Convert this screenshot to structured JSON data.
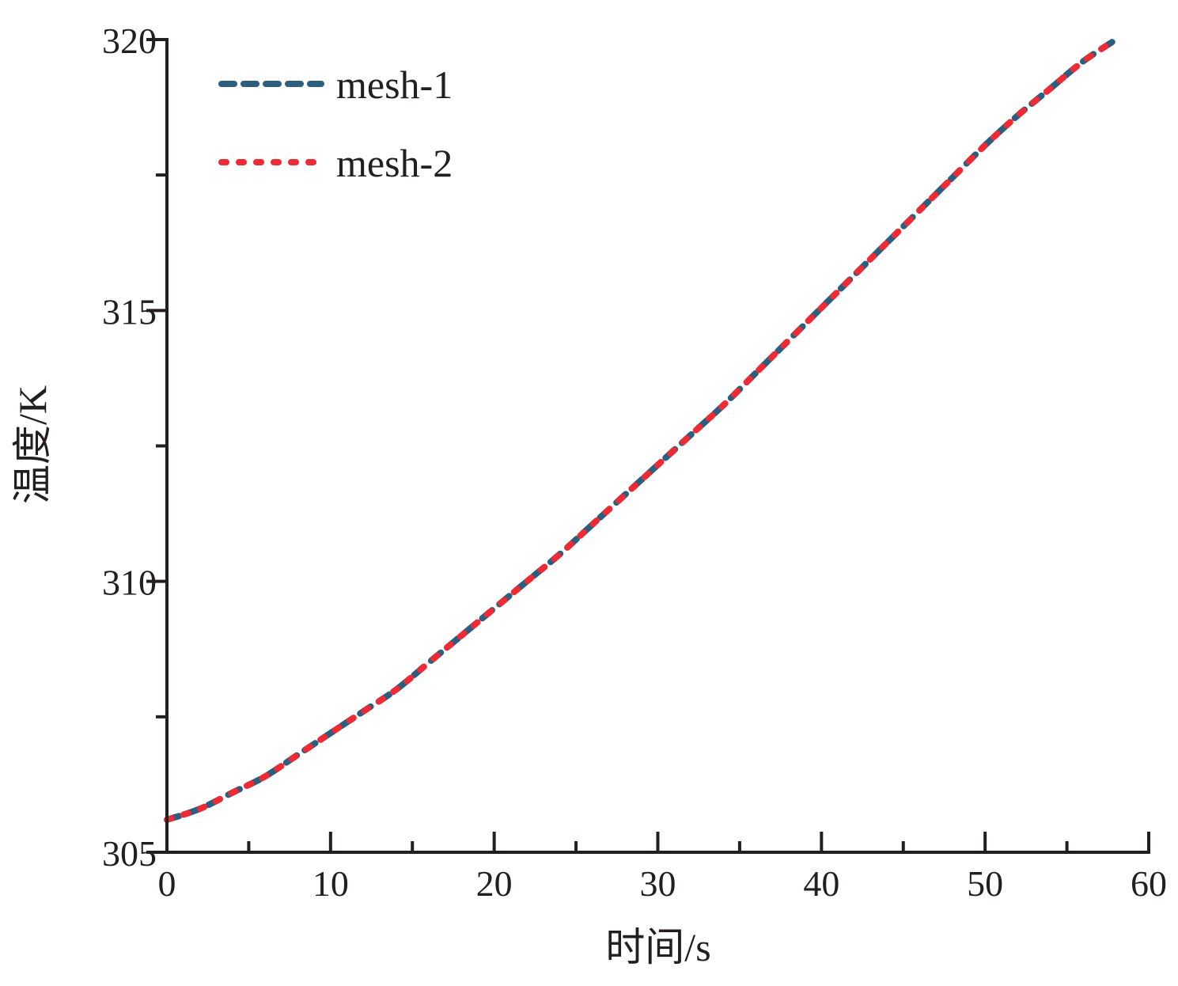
{
  "chart_data": {
    "type": "line",
    "xlabel": "时间/s",
    "ylabel": "温度/K",
    "xlim": [
      0,
      60
    ],
    "ylim": [
      305,
      320
    ],
    "x_ticks": [
      0,
      10,
      20,
      30,
      40,
      50,
      60
    ],
    "x_tick_labels": [
      "0",
      "10",
      "20",
      "30",
      "40",
      "50",
      "60"
    ],
    "y_ticks": [
      305,
      310,
      315,
      320
    ],
    "y_tick_labels": [
      "305",
      "310",
      "315",
      "320"
    ],
    "x_minor_ticks": [
      5,
      15,
      25,
      35,
      45,
      55
    ],
    "y_minor_ticks": [
      307.5,
      312.5,
      317.5
    ],
    "grid": false,
    "legend_position": "top-left",
    "series": [
      {
        "name": "mesh-1",
        "color": "#2e5e7e",
        "style": "dashed",
        "x": [
          0,
          2,
          4,
          6,
          8,
          10,
          12,
          14,
          16,
          18,
          20,
          22,
          24,
          26,
          28,
          30,
          32,
          34,
          36,
          38,
          40,
          42,
          44,
          46,
          48,
          50,
          52,
          54,
          56,
          58
        ],
        "y": [
          305.6,
          305.8,
          306.1,
          306.4,
          306.8,
          307.2,
          307.6,
          308.0,
          308.5,
          309.0,
          309.5,
          310.0,
          310.5,
          311.05,
          311.6,
          312.15,
          312.7,
          313.25,
          313.85,
          314.45,
          315.05,
          315.65,
          316.25,
          316.85,
          317.45,
          318.05,
          318.6,
          319.1,
          319.6,
          320.0
        ]
      },
      {
        "name": "mesh-2",
        "color": "#ee2a35",
        "style": "dotted",
        "x": [
          0,
          2,
          4,
          6,
          8,
          10,
          12,
          14,
          16,
          18,
          20,
          22,
          24,
          26,
          28,
          30,
          32,
          34,
          36,
          38,
          40,
          42,
          44,
          46,
          48,
          50,
          52,
          54,
          56,
          58
        ],
        "y": [
          305.6,
          305.8,
          306.1,
          306.4,
          306.8,
          307.2,
          307.6,
          308.0,
          308.5,
          309.0,
          309.5,
          310.0,
          310.5,
          311.05,
          311.6,
          312.15,
          312.7,
          313.25,
          313.85,
          314.45,
          315.05,
          315.65,
          316.25,
          316.85,
          317.45,
          318.05,
          318.6,
          319.1,
          319.6,
          320.0
        ]
      }
    ]
  }
}
